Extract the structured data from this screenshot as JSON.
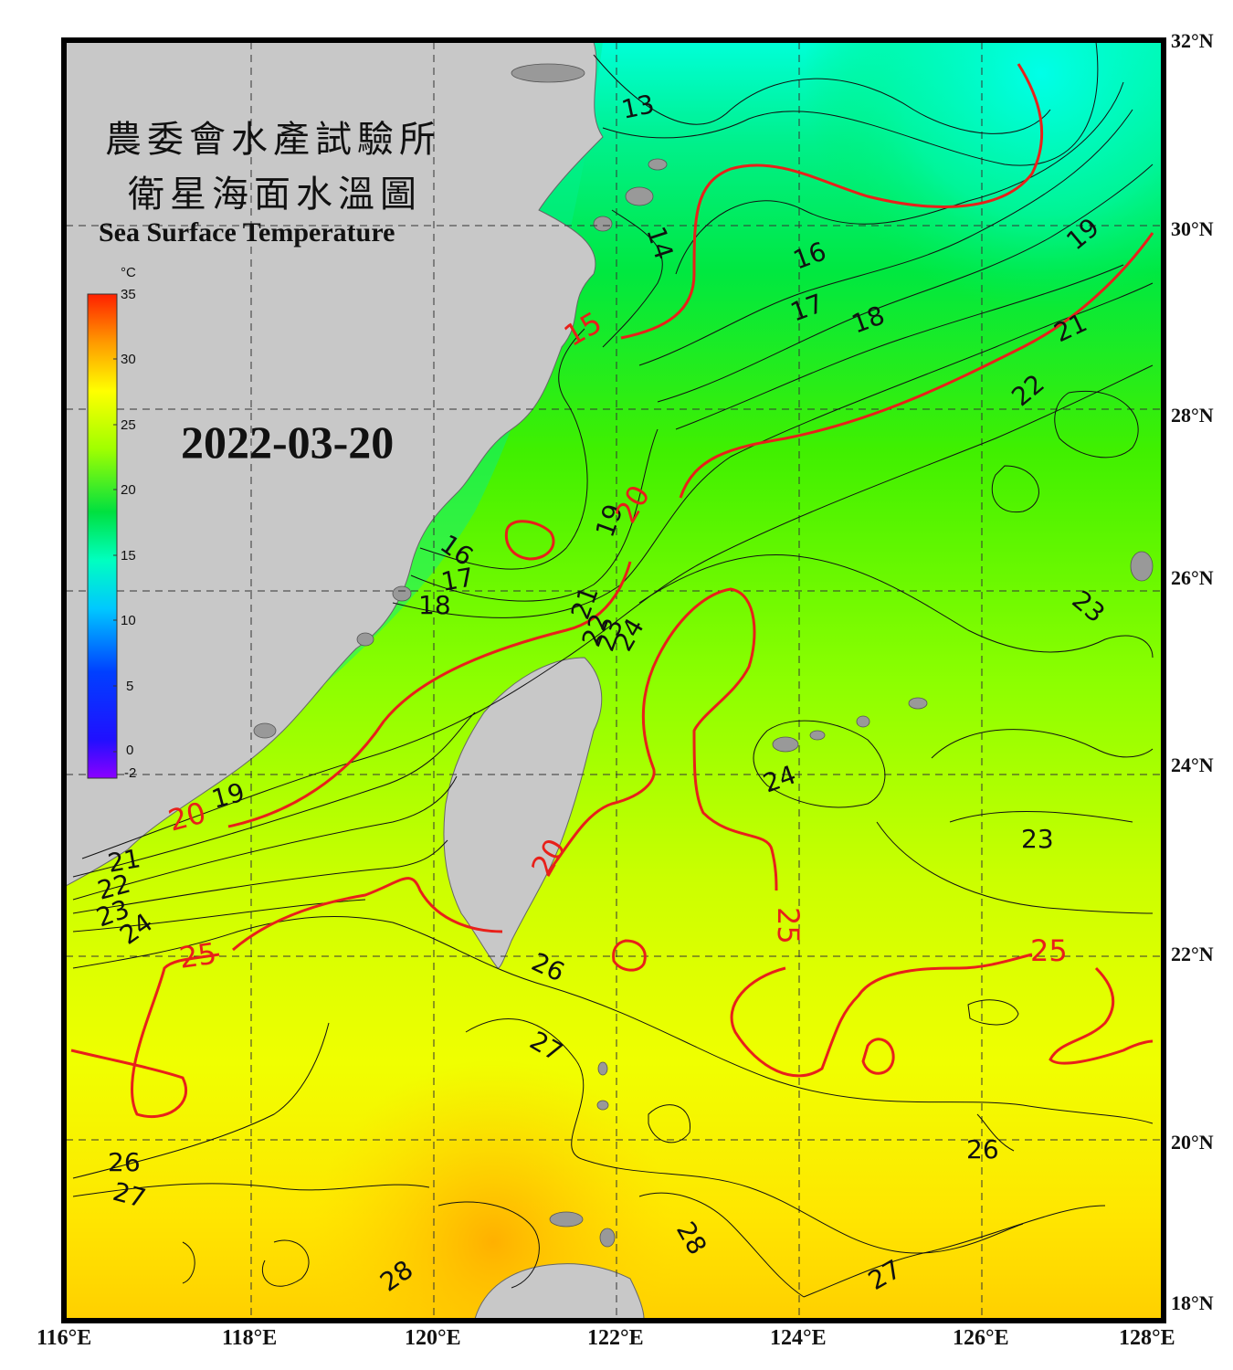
{
  "title_zh_line1": "農委會水產試驗所",
  "title_zh_line2": "衛星海面水溫圖",
  "title_en": "Sea Surface Temperature",
  "date": "2022-03-20",
  "colorbar": {
    "unit": "°C",
    "ticks": [
      "35",
      "30",
      "25",
      "20",
      "15",
      "10",
      "5",
      "0",
      "-2"
    ],
    "range": [
      -2,
      35
    ]
  },
  "lat_labels": [
    "32°N",
    "30°N",
    "28°N",
    "26°N",
    "24°N",
    "22°N",
    "20°N",
    "18°N"
  ],
  "lon_labels": [
    "116°E",
    "118°E",
    "120°E",
    "122°E",
    "124°E",
    "126°E",
    "128°E"
  ],
  "map_extent": {
    "lon": [
      116,
      128
    ],
    "lat": [
      18,
      32
    ]
  },
  "colors": {
    "land": "#c8c8c8",
    "frame": "#000000",
    "red_isotherm": "#e8201a",
    "black_isotherm": "#111111",
    "grid": "#333333"
  },
  "isotherm_labels": {
    "black": [
      "13",
      "14",
      "16",
      "17",
      "18",
      "19",
      "21",
      "22",
      "23",
      "16",
      "17",
      "18",
      "19",
      "21",
      "22",
      "23",
      "24",
      "19",
      "21",
      "22",
      "23",
      "24",
      "24",
      "23",
      "26",
      "27",
      "26",
      "26",
      "27",
      "28",
      "28",
      "27"
    ],
    "red": [
      "15",
      "20",
      "20",
      "25",
      "25",
      "25",
      "20"
    ]
  }
}
